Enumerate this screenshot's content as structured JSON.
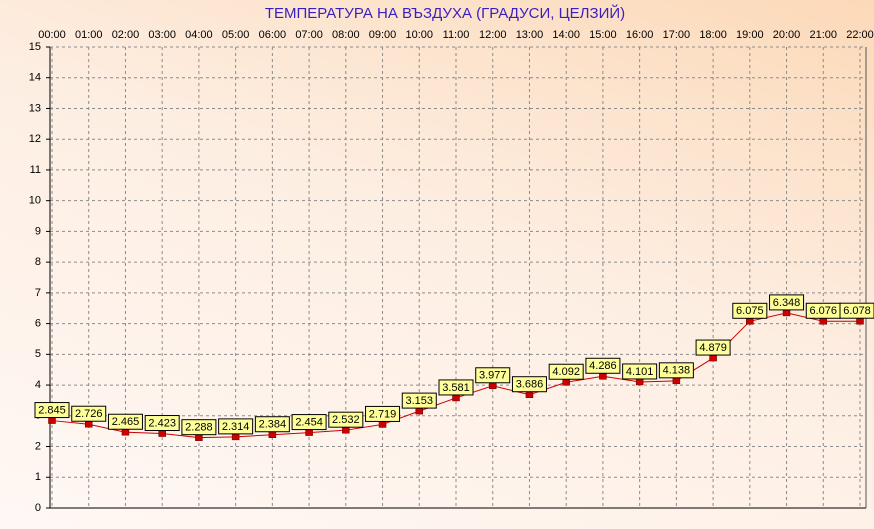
{
  "chart_data": {
    "type": "line",
    "title": "ТЕМПЕРАТУРА НА ВЪЗДУХА  (ГРАДУСИ, ЦЕЛЗИЙ)",
    "categories": [
      "00:00",
      "01:00",
      "02:00",
      "03:00",
      "04:00",
      "05:00",
      "06:00",
      "07:00",
      "08:00",
      "09:00",
      "10:00",
      "11:00",
      "12:00",
      "13:00",
      "14:00",
      "15:00",
      "16:00",
      "17:00",
      "18:00",
      "19:00",
      "20:00",
      "21:00",
      "22:00"
    ],
    "values": [
      2.845,
      2.726,
      2.465,
      2.423,
      2.288,
      2.314,
      2.384,
      2.454,
      2.532,
      2.719,
      3.153,
      3.581,
      3.977,
      3.686,
      4.092,
      4.286,
      4.101,
      4.138,
      4.879,
      6.075,
      6.348,
      6.076,
      6.078
    ],
    "color": "#cc0000",
    "ylim": [
      0,
      15
    ],
    "yticks": [
      0,
      1,
      2,
      3,
      4,
      5,
      6,
      7,
      8,
      9,
      10,
      11,
      12,
      13,
      14,
      15
    ],
    "grid": true
  }
}
